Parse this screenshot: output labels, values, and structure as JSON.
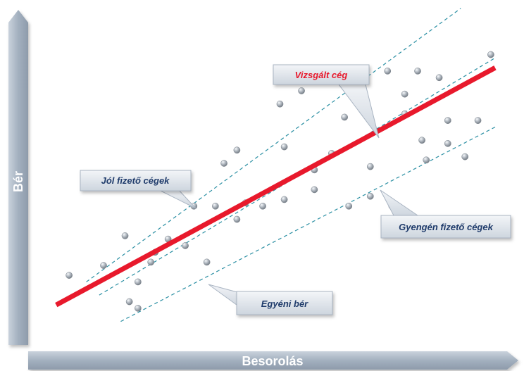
{
  "chart_data": {
    "type": "scatter",
    "title": "",
    "xlabel": "Besorolás",
    "ylabel": "Bér",
    "xlim": [
      0,
      100
    ],
    "ylim": [
      0,
      100
    ],
    "grid": false,
    "points": [
      {
        "x": 1,
        "y": 19
      },
      {
        "x": 9,
        "y": 22
      },
      {
        "x": 14,
        "y": 31
      },
      {
        "x": 15,
        "y": 11
      },
      {
        "x": 17,
        "y": 17
      },
      {
        "x": 17,
        "y": 9
      },
      {
        "x": 20,
        "y": 23
      },
      {
        "x": 21,
        "y": 26
      },
      {
        "x": 24,
        "y": 30
      },
      {
        "x": 28,
        "y": 28
      },
      {
        "x": 30,
        "y": 40
      },
      {
        "x": 33,
        "y": 23
      },
      {
        "x": 35,
        "y": 40
      },
      {
        "x": 37,
        "y": 53
      },
      {
        "x": 40,
        "y": 57
      },
      {
        "x": 40,
        "y": 36
      },
      {
        "x": 42,
        "y": 41
      },
      {
        "x": 46,
        "y": 40
      },
      {
        "x": 50,
        "y": 71
      },
      {
        "x": 51,
        "y": 58
      },
      {
        "x": 51,
        "y": 42
      },
      {
        "x": 55,
        "y": 75
      },
      {
        "x": 58,
        "y": 51
      },
      {
        "x": 58,
        "y": 45
      },
      {
        "x": 62,
        "y": 56
      },
      {
        "x": 65,
        "y": 67
      },
      {
        "x": 66,
        "y": 40
      },
      {
        "x": 70,
        "y": 68
      },
      {
        "x": 71,
        "y": 52
      },
      {
        "x": 71,
        "y": 43
      },
      {
        "x": 75,
        "y": 81
      },
      {
        "x": 76,
        "y": 40
      },
      {
        "x": 79,
        "y": 74
      },
      {
        "x": 79,
        "y": 68
      },
      {
        "x": 82,
        "y": 81
      },
      {
        "x": 83,
        "y": 60
      },
      {
        "x": 84,
        "y": 54
      },
      {
        "x": 87,
        "y": 79
      },
      {
        "x": 89,
        "y": 66
      },
      {
        "x": 89,
        "y": 59
      },
      {
        "x": 93,
        "y": 55
      },
      {
        "x": 96,
        "y": 66
      },
      {
        "x": 99,
        "y": 86
      }
    ],
    "trend_line": {
      "label": "Vizsgált cég",
      "color": "#e8192c",
      "x": [
        -2,
        100
      ],
      "y": [
        10,
        82
      ]
    },
    "upper_band": {
      "label": "Jól fizető cégek",
      "style": "dashed",
      "color": "#2a8fa3",
      "x": [
        5,
        92
      ],
      "y": [
        17,
        100
      ]
    },
    "middle_band": {
      "style": "dashed",
      "color": "#2a8fa3",
      "x": [
        8,
        100
      ],
      "y": [
        13,
        85
      ]
    },
    "lower_band": {
      "label": "Gyengén fizető cégek",
      "style": "dashed",
      "color": "#2a8fa3",
      "x": [
        13,
        100
      ],
      "y": [
        5,
        64
      ]
    },
    "annotations": [
      {
        "text": "Vizsgált cég",
        "color": "#e8192c"
      },
      {
        "text": "Jól fizető cégek",
        "color": "#1f3b6b"
      },
      {
        "text": "Gyengén fizető cégek",
        "color": "#1f3b6b"
      },
      {
        "text": "Egyéni bér",
        "color": "#1f3b6b"
      }
    ]
  },
  "colors": {
    "axis_bar": "#9aa7b7",
    "axis_bar_light": "#cdd5de",
    "point": "#8e969e",
    "point_highlight": "#f4f6f8",
    "callout_fill": "#dde3ea",
    "callout_stroke": "#a9b4c2"
  }
}
